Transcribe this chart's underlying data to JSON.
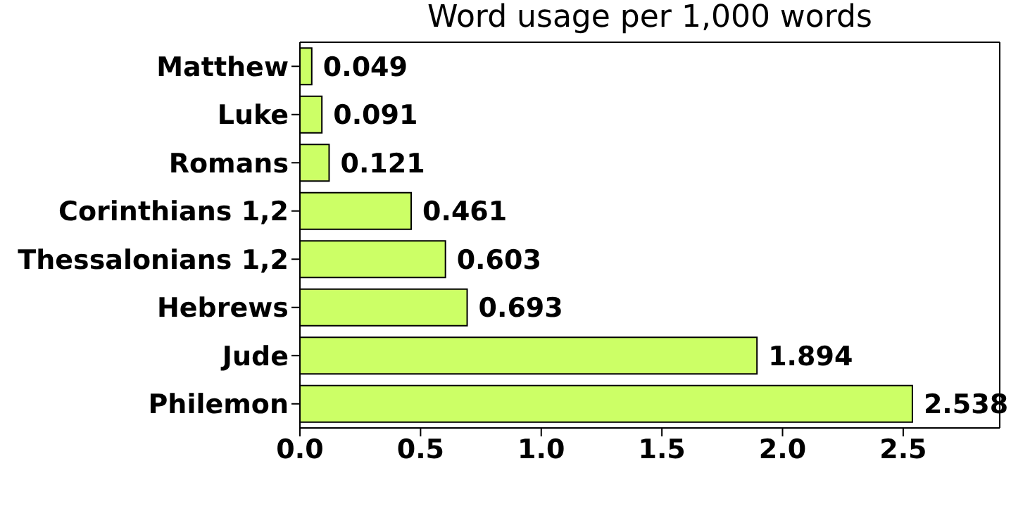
{
  "chart_data": {
    "type": "bar",
    "orientation": "horizontal",
    "title": "Word usage per 1,000 words",
    "categories": [
      "Matthew",
      "Luke",
      "Romans",
      "Corinthians 1,2",
      "Thessalonians 1,2",
      "Hebrews",
      "Jude",
      "Philemon"
    ],
    "values": [
      0.049,
      0.091,
      0.121,
      0.461,
      0.603,
      0.693,
      1.894,
      2.538
    ],
    "color": "#ccff66",
    "xlim": [
      0,
      2.9
    ],
    "xticks": [
      {
        "value": 0,
        "label": "0.0"
      },
      0.5,
      {
        "value": 1,
        "label": "1.0"
      },
      1.5,
      {
        "value": 2,
        "label": "2.0"
      },
      2.5
    ],
    "data_labels": true,
    "grid": false,
    "legend": false
  }
}
